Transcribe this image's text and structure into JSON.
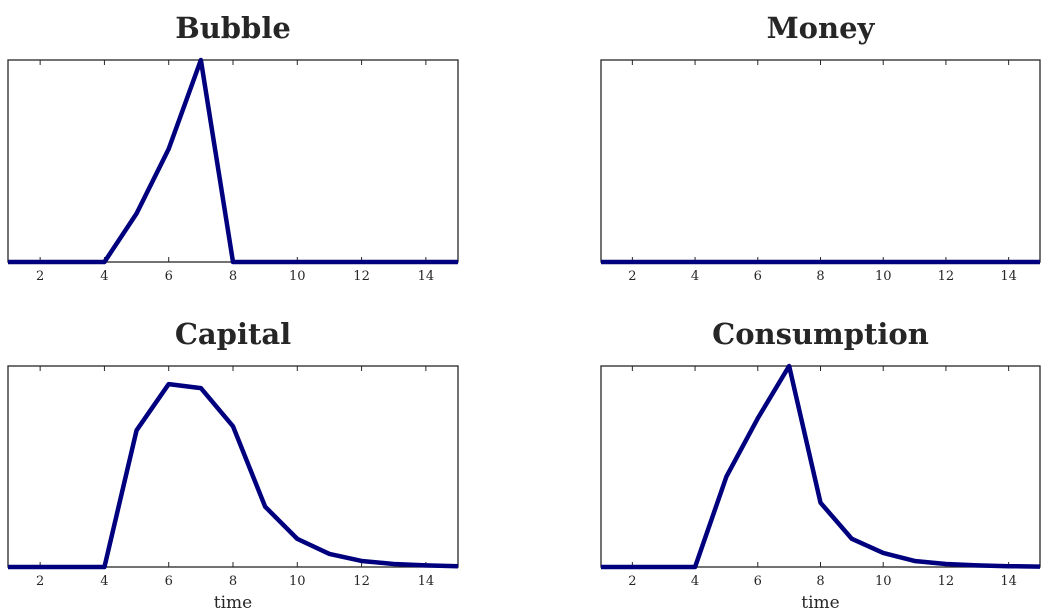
{
  "chart_data": [
    {
      "type": "line",
      "title": "Bubble",
      "xlabel": "",
      "ylabel": "",
      "x": [
        1,
        2,
        3,
        4,
        5,
        6,
        7,
        8,
        9,
        10,
        11,
        12,
        13,
        14,
        15
      ],
      "xlim": [
        1,
        15
      ],
      "xticks": [
        2,
        4,
        6,
        8,
        10,
        12,
        14
      ],
      "ylim": [
        0,
        1
      ],
      "grid": false,
      "series": [
        {
          "values": [
            0,
            0,
            0,
            0,
            0.24,
            0.56,
            1.0,
            0,
            0,
            0,
            0,
            0,
            0,
            0,
            0
          ]
        }
      ]
    },
    {
      "type": "line",
      "title": "Money",
      "xlabel": "",
      "ylabel": "",
      "x": [
        1,
        2,
        3,
        4,
        5,
        6,
        7,
        8,
        9,
        10,
        11,
        12,
        13,
        14,
        15
      ],
      "xlim": [
        1,
        15
      ],
      "xticks": [
        2,
        4,
        6,
        8,
        10,
        12,
        14
      ],
      "ylim": [
        0,
        1
      ],
      "grid": false,
      "series": [
        {
          "values": [
            0,
            0,
            0,
            0,
            0,
            0,
            0,
            0,
            0,
            0,
            0,
            0,
            0,
            0,
            0
          ]
        }
      ]
    },
    {
      "type": "line",
      "title": "Capital",
      "xlabel": "time",
      "ylabel": "",
      "x": [
        1,
        2,
        3,
        4,
        5,
        6,
        7,
        8,
        9,
        10,
        11,
        12,
        13,
        14,
        15
      ],
      "xlim": [
        1,
        15
      ],
      "xticks": [
        2,
        4,
        6,
        8,
        10,
        12,
        14
      ],
      "ylim": [
        0,
        1
      ],
      "grid": false,
      "series": [
        {
          "values": [
            0,
            0,
            0,
            0,
            0.68,
            0.91,
            0.89,
            0.7,
            0.3,
            0.14,
            0.065,
            0.03,
            0.015,
            0.008,
            0.004
          ]
        }
      ]
    },
    {
      "type": "line",
      "title": "Consumption",
      "xlabel": "time",
      "ylabel": "",
      "x": [
        1,
        2,
        3,
        4,
        5,
        6,
        7,
        8,
        9,
        10,
        11,
        12,
        13,
        14,
        15
      ],
      "xlim": [
        1,
        15
      ],
      "xticks": [
        2,
        4,
        6,
        8,
        10,
        12,
        14
      ],
      "ylim": [
        0,
        1
      ],
      "grid": false,
      "series": [
        {
          "values": [
            0,
            0,
            0,
            0,
            0.45,
            0.74,
            1.0,
            0.32,
            0.14,
            0.07,
            0.03,
            0.015,
            0.008,
            0.004,
            0.002
          ]
        }
      ]
    }
  ]
}
